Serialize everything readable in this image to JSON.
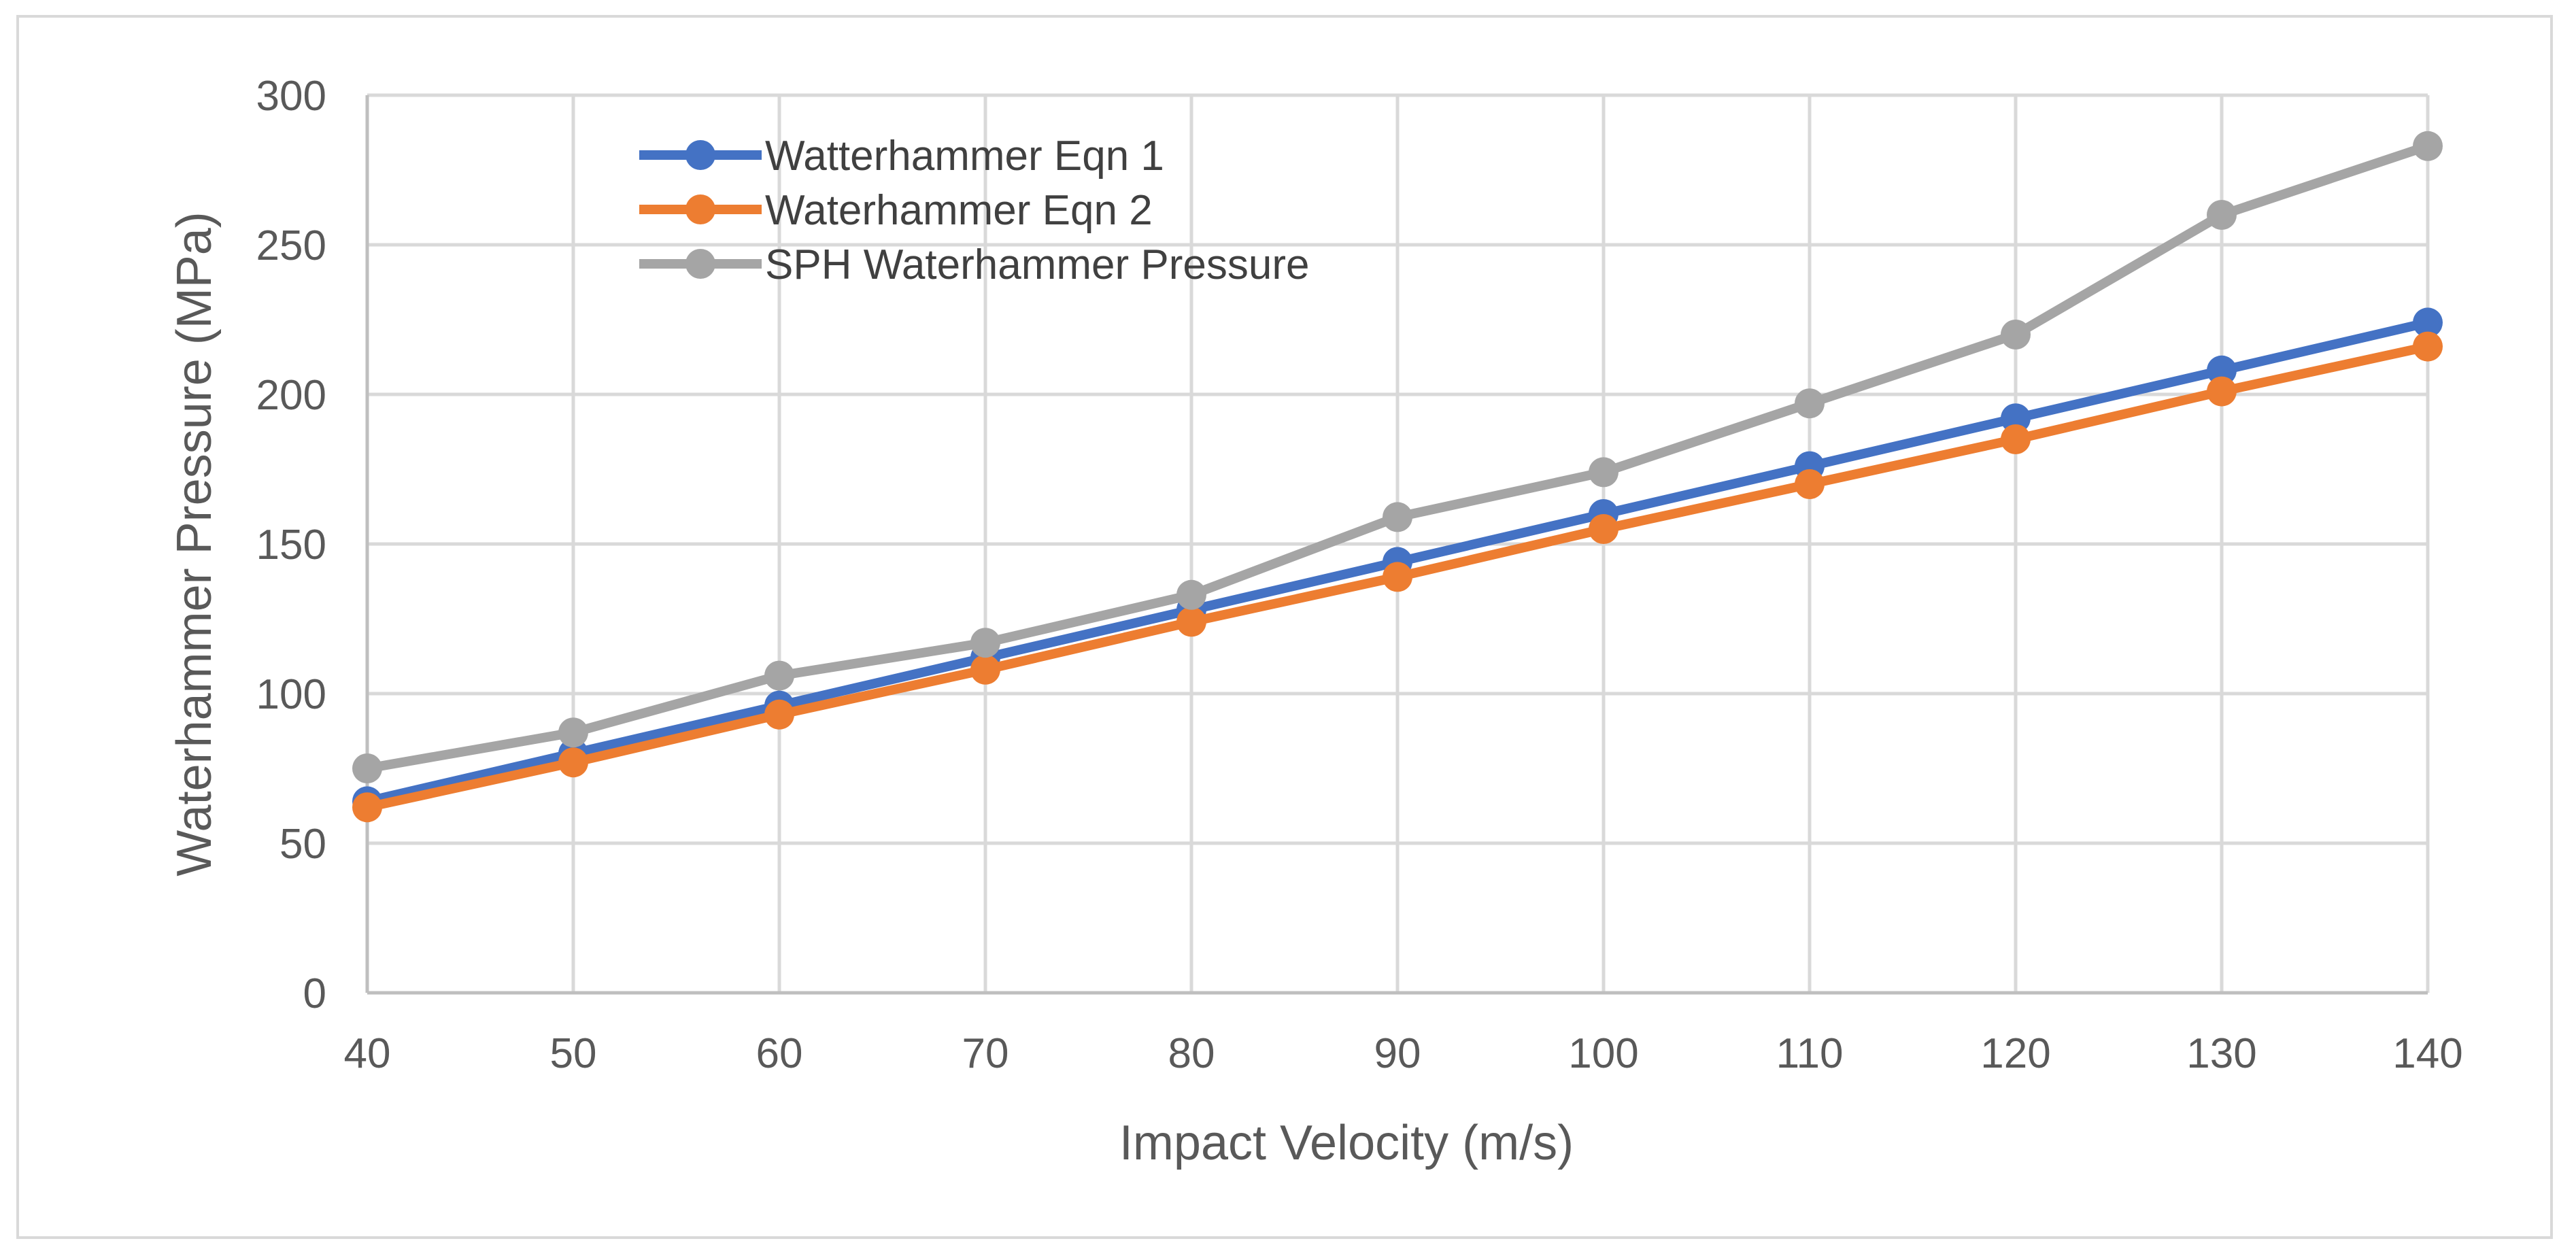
{
  "chart_data": {
    "type": "line",
    "title": "",
    "xlabel": "Impact Velocity (m/s)",
    "ylabel": "Waterhammer Pressure (MPa)",
    "x": [
      40,
      50,
      60,
      70,
      80,
      90,
      100,
      110,
      120,
      130,
      140
    ],
    "xlim": [
      40,
      140
    ],
    "ylim": [
      0,
      300
    ],
    "xticks": [
      "40",
      "50",
      "60",
      "70",
      "80",
      "90",
      "100",
      "110",
      "120",
      "130",
      "140"
    ],
    "yticks": [
      "0",
      "50",
      "100",
      "150",
      "200",
      "250",
      "300"
    ],
    "grid": true,
    "legend_position": "top-left",
    "series": [
      {
        "name": "Watterhammer Eqn 1",
        "color": "#4472c4",
        "values": [
          64,
          80,
          96,
          112,
          128,
          144,
          160,
          176,
          192,
          208,
          224
        ]
      },
      {
        "name": "Waterhammer Eqn 2",
        "color": "#ed7d31",
        "values": [
          62,
          77,
          93,
          108,
          124,
          139,
          155,
          170,
          185,
          201,
          216
        ]
      },
      {
        "name": "SPH Waterhammer Pressure",
        "color": "#a5a5a5",
        "values": [
          75,
          87,
          106,
          117,
          133,
          159,
          174,
          197,
          220,
          260,
          283
        ]
      }
    ]
  }
}
